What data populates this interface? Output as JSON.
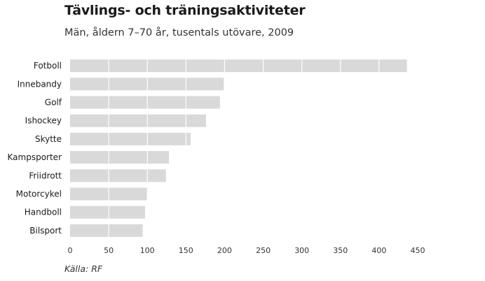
{
  "chart_data": {
    "type": "bar",
    "orientation": "horizontal",
    "title": "Tävlings- och träningsaktiviteter",
    "subtitle": "Män, åldern 7–70 år, tusentals utövare, 2009",
    "source": "Källa: RF",
    "categories": [
      "Fotboll",
      "Innebandy",
      "Golf",
      "Ishockey",
      "Skytte",
      "Kampsporter",
      "Friidrott",
      "Motorcykel",
      "Handboll",
      "Bilsport"
    ],
    "values": [
      436,
      199,
      194,
      176,
      156,
      128,
      124,
      100,
      97,
      94
    ],
    "xlim": [
      0,
      450
    ],
    "xticks": [
      "0",
      "50",
      "100",
      "150",
      "200",
      "250",
      "300",
      "350",
      "400",
      "450"
    ],
    "grid": "vertical",
    "bar_color": "#d9d9d9",
    "gridline_color": "#ffffff"
  }
}
